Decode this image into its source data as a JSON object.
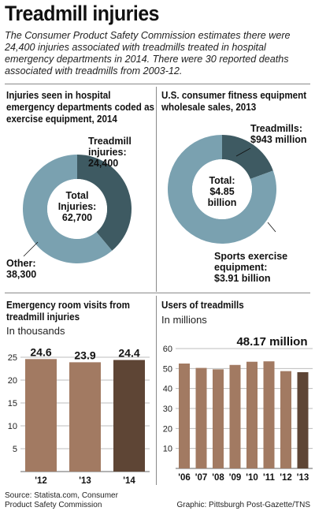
{
  "title": "Treadmill injuries",
  "subtitle": "The Consumer Product Safety Commission estimates there were 24,400 injuries associated with treadmills treated in hospital emergency departments in 2014. There were 30 reported deaths associated with treadmills from 2003-12.",
  "colors": {
    "dark": "#3e5a62",
    "light": "#7aa1b0",
    "bar_light": "#a27a62",
    "bar_dark": "#5e4535",
    "grid": "#bdbdbd"
  },
  "chart_data": [
    {
      "type": "pie",
      "title": "Injuries seen in hospital emergency departments coded as exercise equipment, 2014",
      "center_label": [
        "Total",
        "Injuries:",
        "62,700"
      ],
      "slices": [
        {
          "label_line1": "Treadmill",
          "label_line2": "injuries:",
          "value_text": "24,400",
          "value": 24400
        },
        {
          "label_line1": "Other:",
          "label_line2": "",
          "value_text": "38,300",
          "value": 38300
        }
      ]
    },
    {
      "type": "pie",
      "title": "U.S. consumer fitness equipment wholesale sales, 2013",
      "center_label": [
        "Total:",
        "$4.85",
        "billion"
      ],
      "slices": [
        {
          "label_line1": "Treadmills:",
          "label_line2": "",
          "value_text": "$943 million",
          "value": 0.943
        },
        {
          "label_line1": "Sports exercise",
          "label_line2": "equipment:",
          "value_text": "$3.91 billion",
          "value": 3.91
        }
      ]
    },
    {
      "type": "bar",
      "title": "Emergency room visits from treadmill injuries",
      "subtitle": "In thousands",
      "categories": [
        "'12",
        "'13",
        "'14"
      ],
      "values": [
        24.6,
        23.9,
        24.4
      ],
      "value_labels": [
        "24.6",
        "23.9",
        "24.4"
      ],
      "yticks": [
        "5",
        "10",
        "15",
        "20",
        "25"
      ],
      "ylim": [
        0,
        25
      ],
      "grid": true
    },
    {
      "type": "bar",
      "title": "Users of treadmills",
      "subtitle": "In millions",
      "categories": [
        "'06",
        "'07",
        "'08",
        "'09",
        "'10",
        "'11",
        "'12",
        "'13"
      ],
      "values": [
        52.5,
        50.3,
        49.6,
        51.8,
        53.4,
        53.6,
        48.7,
        48.17
      ],
      "highlight_label": "48.17 million",
      "yticks": [
        "10",
        "20",
        "30",
        "40",
        "50",
        "60"
      ],
      "ylim": [
        0,
        60
      ],
      "grid": true
    }
  ],
  "footer": {
    "source_line1": "Source: Statista.com, Consumer",
    "source_line2": "Product Safety Commission",
    "credit": "Graphic: Pittsburgh Post-Gazette/TNS"
  }
}
